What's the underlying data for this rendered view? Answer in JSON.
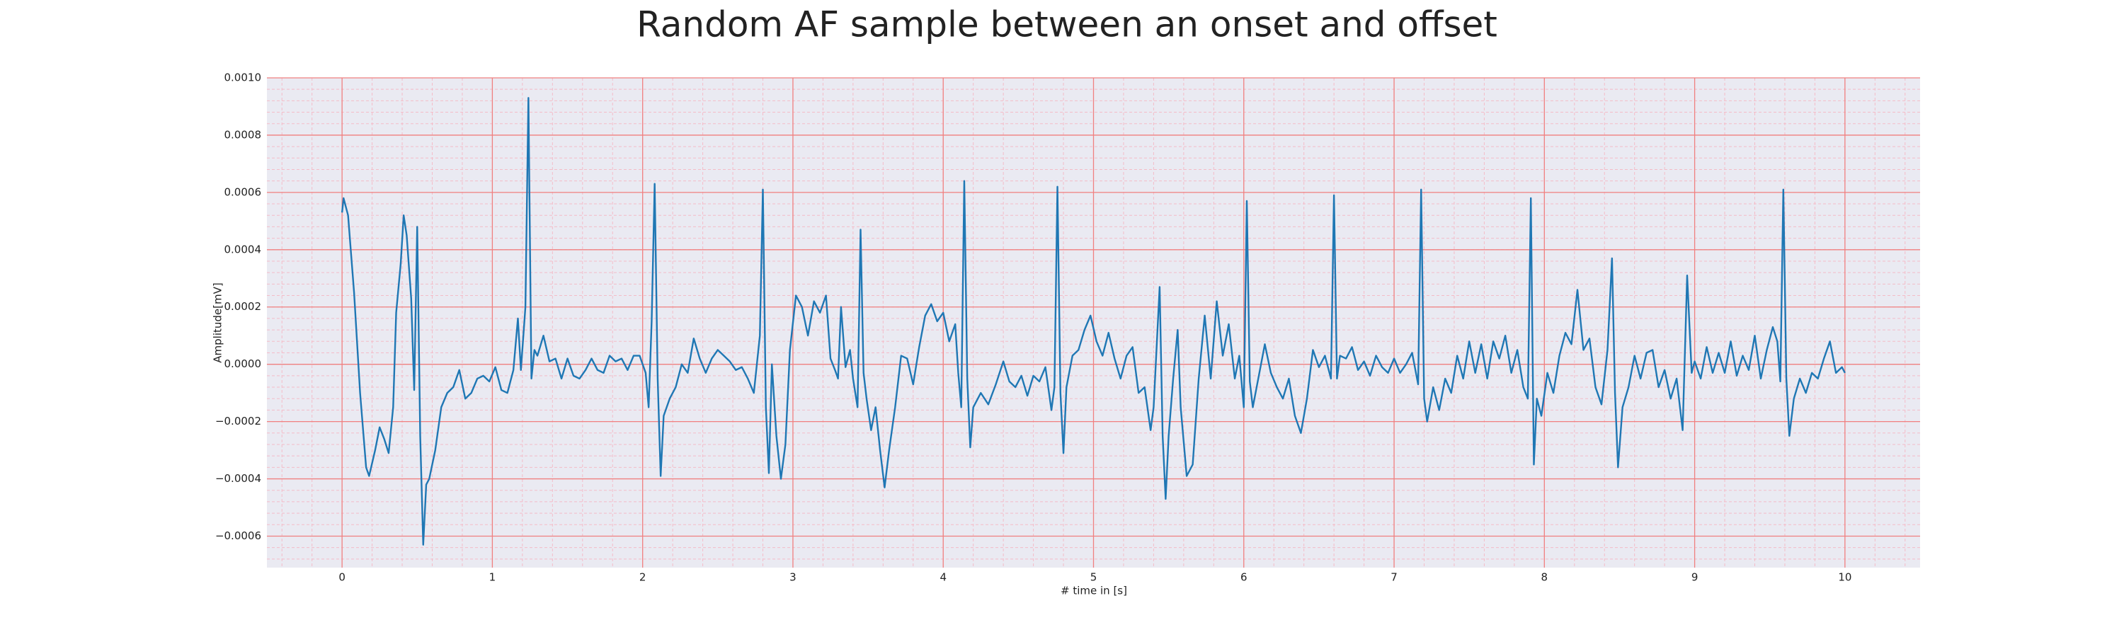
{
  "chart_data": {
    "type": "line",
    "title": "Random AF sample between an onset and offset",
    "x_label": "# time in [s]",
    "y_label": "Amplitude[mV]",
    "color": "#1f77b4",
    "grid": true,
    "minor_grid": true,
    "xlim": [
      -0.5,
      10.5
    ],
    "ylim": [
      -0.00071,
      0.001
    ],
    "xticks": [
      0,
      1,
      2,
      3,
      4,
      5,
      6,
      7,
      8,
      9,
      10
    ],
    "yticks": [
      {
        "value": -0.0006,
        "label": "−0.0006"
      },
      {
        "value": -0.0004,
        "label": "−0.0004"
      },
      {
        "value": -0.0002,
        "label": "−0.0002"
      },
      {
        "value": 0,
        "label": "0.0000"
      },
      {
        "value": 0.0002,
        "label": "0.0002"
      },
      {
        "value": 0.0004,
        "label": "0.0004"
      },
      {
        "value": 0.0006,
        "label": "0.0006"
      },
      {
        "value": 0.0008,
        "label": "0.0008"
      },
      {
        "value": 0.001,
        "label": "0.0010"
      }
    ],
    "x": [
      0,
      0.01,
      0.04,
      0.08,
      0.12,
      0.16,
      0.18,
      0.22,
      0.25,
      0.28,
      0.31,
      0.34,
      0.36,
      0.39,
      0.41,
      0.43,
      0.46,
      0.48,
      0.5,
      0.52,
      0.54,
      0.56,
      0.58,
      0.62,
      0.66,
      0.7,
      0.74,
      0.78,
      0.82,
      0.86,
      0.9,
      0.94,
      0.98,
      1.02,
      1.06,
      1.1,
      1.14,
      1.17,
      1.19,
      1.22,
      1.24,
      1.26,
      1.28,
      1.3,
      1.34,
      1.38,
      1.42,
      1.46,
      1.5,
      1.54,
      1.58,
      1.62,
      1.66,
      1.7,
      1.74,
      1.78,
      1.82,
      1.86,
      1.9,
      1.94,
      1.98,
      2.02,
      2.04,
      2.06,
      2.08,
      2.1,
      2.12,
      2.14,
      2.18,
      2.22,
      2.26,
      2.3,
      2.34,
      2.38,
      2.42,
      2.46,
      2.5,
      2.54,
      2.58,
      2.62,
      2.66,
      2.7,
      2.74,
      2.78,
      2.8,
      2.82,
      2.84,
      2.86,
      2.89,
      2.92,
      2.95,
      2.98,
      3.02,
      3.06,
      3.1,
      3.14,
      3.18,
      3.22,
      3.25,
      3.28,
      3.3,
      3.32,
      3.35,
      3.38,
      3.4,
      3.43,
      3.45,
      3.47,
      3.49,
      3.52,
      3.55,
      3.58,
      3.61,
      3.64,
      3.68,
      3.72,
      3.76,
      3.8,
      3.84,
      3.88,
      3.92,
      3.96,
      4.0,
      4.04,
      4.08,
      4.1,
      4.12,
      4.14,
      4.16,
      4.18,
      4.2,
      4.25,
      4.3,
      4.35,
      4.4,
      4.44,
      4.48,
      4.52,
      4.56,
      4.6,
      4.64,
      4.68,
      4.72,
      4.74,
      4.76,
      4.78,
      4.8,
      4.82,
      4.86,
      4.9,
      4.94,
      4.98,
      5.02,
      5.06,
      5.1,
      5.14,
      5.18,
      5.22,
      5.26,
      5.3,
      5.34,
      5.38,
      5.4,
      5.44,
      5.46,
      5.48,
      5.5,
      5.53,
      5.56,
      5.58,
      5.62,
      5.66,
      5.7,
      5.74,
      5.78,
      5.82,
      5.86,
      5.9,
      5.94,
      5.97,
      6.0,
      6.02,
      6.04,
      6.06,
      6.1,
      6.14,
      6.18,
      6.22,
      6.26,
      6.3,
      6.34,
      6.38,
      6.42,
      6.46,
      6.5,
      6.54,
      6.58,
      6.6,
      6.62,
      6.64,
      6.68,
      6.72,
      6.76,
      6.8,
      6.84,
      6.88,
      6.92,
      6.96,
      7.0,
      7.04,
      7.08,
      7.12,
      7.16,
      7.18,
      7.2,
      7.22,
      7.26,
      7.3,
      7.34,
      7.38,
      7.42,
      7.46,
      7.5,
      7.54,
      7.58,
      7.62,
      7.66,
      7.7,
      7.74,
      7.78,
      7.82,
      7.86,
      7.89,
      7.91,
      7.93,
      7.95,
      7.98,
      8.02,
      8.06,
      8.1,
      8.14,
      8.18,
      8.22,
      8.26,
      8.3,
      8.34,
      8.38,
      8.42,
      8.45,
      8.47,
      8.49,
      8.52,
      8.56,
      8.6,
      8.64,
      8.68,
      8.72,
      8.76,
      8.8,
      8.84,
      8.88,
      8.92,
      8.95,
      8.98,
      9.0,
      9.04,
      9.08,
      9.12,
      9.16,
      9.2,
      9.24,
      9.28,
      9.32,
      9.36,
      9.4,
      9.44,
      9.48,
      9.52,
      9.55,
      9.57,
      9.59,
      9.61,
      9.63,
      9.66,
      9.7,
      9.74,
      9.78,
      9.82,
      9.86,
      9.9,
      9.94,
      9.98,
      10.0
    ],
    "values": [
      0.00053,
      0.00058,
      0.00052,
      0.00025,
      -0.0001,
      -0.00036,
      -0.00039,
      -0.0003,
      -0.00022,
      -0.00026,
      -0.00031,
      -0.00015,
      0.00018,
      0.00035,
      0.00052,
      0.00045,
      0.00023,
      -9e-05,
      0.00048,
      -0.00025,
      -0.00063,
      -0.00042,
      -0.0004,
      -0.0003,
      -0.00015,
      -0.0001,
      -8e-05,
      -2e-05,
      -0.00012,
      -0.0001,
      -5e-05,
      -4e-05,
      -6e-05,
      -1e-05,
      -9e-05,
      -0.0001,
      -2e-05,
      0.00016,
      -2e-05,
      0.0002,
      0.00093,
      -5e-05,
      5e-05,
      3e-05,
      0.0001,
      1e-05,
      2e-05,
      -5e-05,
      2e-05,
      -4e-05,
      -5e-05,
      -2e-05,
      2e-05,
      -2e-05,
      -3e-05,
      3e-05,
      1e-05,
      2e-05,
      -2e-05,
      3e-05,
      3e-05,
      -3e-05,
      -0.00015,
      0.00015,
      0.00063,
      -5e-05,
      -0.00039,
      -0.00018,
      -0.00012,
      -8e-05,
      0,
      -3e-05,
      9e-05,
      2e-05,
      -3e-05,
      2e-05,
      5e-05,
      3e-05,
      1e-05,
      -2e-05,
      -1e-05,
      -5e-05,
      -0.0001,
      0.0001,
      0.00061,
      -0.00015,
      -0.00038,
      0,
      -0.00025,
      -0.0004,
      -0.00028,
      5e-05,
      0.00024,
      0.0002,
      0.0001,
      0.00022,
      0.00018,
      0.00024,
      2e-05,
      -2e-05,
      -5e-05,
      0.0002,
      -1e-05,
      5e-05,
      -5e-05,
      -0.00015,
      0.00047,
      -3e-05,
      -0.00012,
      -0.00023,
      -0.00015,
      -0.0003,
      -0.00043,
      -0.0003,
      -0.00015,
      3e-05,
      2e-05,
      -7e-05,
      6e-05,
      0.00017,
      0.00021,
      0.00015,
      0.00018,
      8e-05,
      0.00014,
      -3e-05,
      -0.00015,
      0.00064,
      -5e-05,
      -0.00029,
      -0.00015,
      -0.0001,
      -0.00014,
      -7e-05,
      1e-05,
      -6e-05,
      -8e-05,
      -4e-05,
      -0.00011,
      -4e-05,
      -6e-05,
      -1e-05,
      -0.00016,
      -8e-05,
      0.00062,
      -0.0001,
      -0.00031,
      -8e-05,
      3e-05,
      5e-05,
      0.00012,
      0.00017,
      8e-05,
      3e-05,
      0.00011,
      2e-05,
      -5e-05,
      3e-05,
      6e-05,
      -0.0001,
      -8e-05,
      -0.00023,
      -0.00015,
      0.00027,
      -0.00025,
      -0.00047,
      -0.00025,
      -5e-05,
      0.00012,
      -0.00015,
      -0.00039,
      -0.00035,
      -5e-05,
      0.00017,
      -5e-05,
      0.00022,
      3e-05,
      0.00014,
      -5e-05,
      3e-05,
      -0.00015,
      0.00057,
      -6e-05,
      -0.00015,
      -4e-05,
      7e-05,
      -3e-05,
      -8e-05,
      -0.00012,
      -5e-05,
      -0.00018,
      -0.00024,
      -0.00012,
      5e-05,
      -1e-05,
      3e-05,
      -5e-05,
      0.00059,
      -5e-05,
      3e-05,
      2e-05,
      6e-05,
      -2e-05,
      1e-05,
      -4e-05,
      3e-05,
      -1e-05,
      -3e-05,
      2e-05,
      -3e-05,
      0,
      4e-05,
      -7e-05,
      0.00061,
      -0.00012,
      -0.0002,
      -8e-05,
      -0.00016,
      -5e-05,
      -0.0001,
      3e-05,
      -5e-05,
      8e-05,
      -3e-05,
      7e-05,
      -5e-05,
      8e-05,
      2e-05,
      0.0001,
      -3e-05,
      5e-05,
      -8e-05,
      -0.00012,
      0.00058,
      -0.00035,
      -0.00012,
      -0.00018,
      -3e-05,
      -0.0001,
      3e-05,
      0.00011,
      7e-05,
      0.00026,
      5e-05,
      9e-05,
      -8e-05,
      -0.00014,
      5e-05,
      0.00037,
      -0.0001,
      -0.00036,
      -0.00015,
      -8e-05,
      3e-05,
      -5e-05,
      4e-05,
      5e-05,
      -8e-05,
      -2e-05,
      -0.00012,
      -5e-05,
      -0.00023,
      0.00031,
      -3e-05,
      1e-05,
      -5e-05,
      6e-05,
      -3e-05,
      4e-05,
      -3e-05,
      8e-05,
      -4e-05,
      3e-05,
      -2e-05,
      0.0001,
      -5e-05,
      5e-05,
      0.00013,
      8e-05,
      -6e-05,
      0.00061,
      -5e-05,
      -0.00025,
      -0.00012,
      -5e-05,
      -0.0001,
      -3e-05,
      -5e-05,
      2e-05,
      8e-05,
      -3e-05,
      -1e-05,
      -3e-05
    ]
  }
}
